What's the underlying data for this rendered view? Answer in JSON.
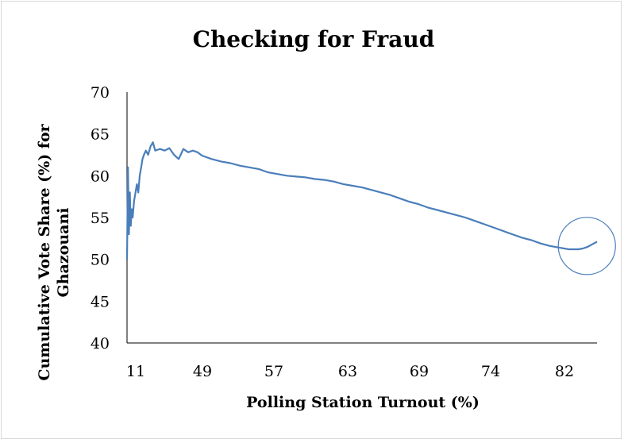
{
  "chart_data": {
    "type": "line",
    "title": "Checking for Fraud",
    "xlabel": "Polling Station Turnout (%)",
    "ylabel": [
      "Cumulative Vote Share (%) for",
      "Ghazouani"
    ],
    "ylim": [
      40,
      70
    ],
    "yticks": [
      40,
      45,
      50,
      55,
      60,
      65,
      70
    ],
    "xticks": [
      "11",
      "49",
      "57",
      "63",
      "69",
      "74",
      "82"
    ],
    "xrange": [
      0,
      100
    ],
    "grid": false,
    "legend": "none",
    "series": [
      {
        "color": "#4a7ebb",
        "x": [
          0,
          0.2,
          0.4,
          0.6,
          0.8,
          1.0,
          1.2,
          1.5,
          1.8,
          2.1,
          2.4,
          2.7,
          3.0,
          3.3,
          3.6,
          4.0,
          4.5,
          5.0,
          5.5,
          6.0,
          7.0,
          8.0,
          9.0,
          10,
          11,
          12,
          13,
          14,
          15,
          16,
          18,
          20,
          22,
          24,
          26,
          28,
          30,
          32,
          34,
          36,
          38,
          40,
          42,
          44,
          46,
          48,
          50,
          52,
          54,
          56,
          58,
          60,
          62,
          64,
          66,
          68,
          70,
          72,
          74,
          76,
          78,
          80,
          82,
          84,
          86,
          88,
          90,
          92,
          94,
          95,
          96,
          97,
          98,
          99,
          100
        ],
        "values": [
          50,
          61,
          53,
          58,
          54,
          56,
          55,
          57,
          58,
          59,
          58,
          60,
          61,
          62,
          62.5,
          63,
          62.5,
          63.5,
          64,
          63,
          63.2,
          63,
          63.3,
          62.5,
          62.0,
          63.2,
          62.8,
          63.0,
          62.8,
          62.4,
          62.0,
          61.7,
          61.5,
          61.2,
          61.0,
          60.8,
          60.4,
          60.2,
          60.0,
          59.9,
          59.8,
          59.6,
          59.5,
          59.3,
          59.0,
          58.8,
          58.6,
          58.3,
          58.0,
          57.7,
          57.3,
          56.9,
          56.6,
          56.2,
          55.9,
          55.6,
          55.3,
          55.0,
          54.6,
          54.2,
          53.8,
          53.4,
          53.0,
          52.6,
          52.3,
          51.9,
          51.6,
          51.4,
          51.2,
          51.2,
          51.2,
          51.3,
          51.5,
          51.8,
          52.1
        ]
      }
    ],
    "annotations": [
      {
        "shape": "circle",
        "x": 97,
        "y": 51.6,
        "color": "#4a7ebb"
      }
    ]
  }
}
